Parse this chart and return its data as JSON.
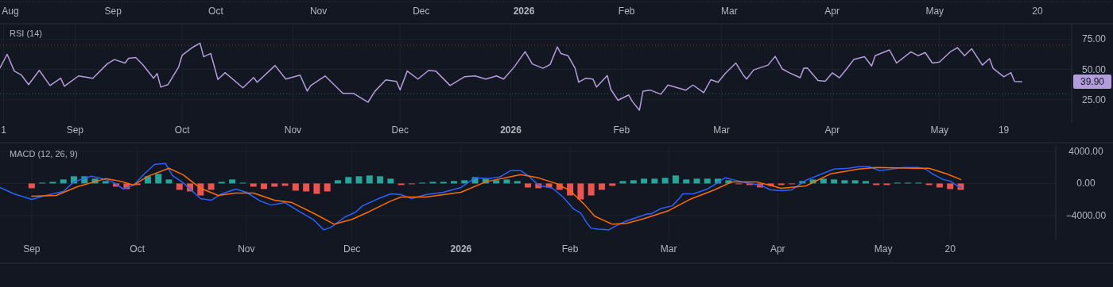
{
  "chart_data": [
    {
      "type": "other",
      "annotations": [
        "Aug",
        "Sep",
        "Oct",
        "Nov",
        "Dec",
        "2026",
        "Feb",
        "Mar",
        "Apr",
        "May",
        "20"
      ]
    },
    {
      "type": "line",
      "title": "RSI (14)",
      "xlim": [
        "2025-08-11",
        "2026-06-07"
      ],
      "ylim": [
        6,
        87
      ],
      "xticks": [
        {
          "value": "2025-08-12",
          "label": "1"
        },
        {
          "value": "2025-09-01",
          "label": "Sep"
        },
        {
          "value": "2025-10-01",
          "label": "Oct"
        },
        {
          "value": "2025-11-01",
          "label": "Nov"
        },
        {
          "value": "2025-12-01",
          "label": "Dec"
        },
        {
          "value": "2026-01-01",
          "label": "2026"
        },
        {
          "value": "2026-02-01",
          "label": "Feb"
        },
        {
          "value": "2026-03-01",
          "label": "Mar"
        },
        {
          "value": "2026-04-01",
          "label": "Apr"
        },
        {
          "value": "2026-05-01",
          "label": "May"
        },
        {
          "value": "2026-05-19",
          "label": "19"
        }
      ],
      "yticks": [
        {
          "value": 25,
          "label": "25.00"
        },
        {
          "value": 50,
          "label": "50.00"
        },
        {
          "value": 75,
          "label": "75.00"
        }
      ],
      "grid": true,
      "ref_lines": [
        {
          "axis": "y",
          "value": 70,
          "color": "#7b3b45",
          "line_style": "dotted"
        },
        {
          "axis": "y",
          "value": 30,
          "color": "#2e5e5a",
          "line_style": "dotted"
        }
      ],
      "annotations": [
        "39.90"
      ],
      "series": [
        {
          "color": "#b39ddb",
          "x": [
            "2025-08-11",
            "2025-08-13",
            "2025-08-15",
            "2025-08-17",
            "2025-08-19",
            "2025-08-22",
            "2025-08-25",
            "2025-08-28",
            "2025-08-29",
            "2025-09-02",
            "2025-09-06",
            "2025-09-10",
            "2025-09-12",
            "2025-09-15",
            "2025-09-16",
            "2025-09-18",
            "2025-09-20",
            "2025-09-23",
            "2025-09-24",
            "2025-09-25",
            "2025-09-27",
            "2025-09-30",
            "2025-10-01",
            "2025-10-04",
            "2025-10-06",
            "2025-10-07",
            "2025-10-09",
            "2025-10-11",
            "2025-10-13",
            "2025-10-18",
            "2025-10-21",
            "2025-10-22",
            "2025-10-27",
            "2025-10-30",
            "2025-11-03",
            "2025-11-05",
            "2025-11-06",
            "2025-11-10",
            "2025-11-15",
            "2025-11-18",
            "2025-11-22",
            "2025-11-24",
            "2025-11-27",
            "2025-11-30",
            "2025-12-01",
            "2025-12-03",
            "2025-12-06",
            "2025-12-09",
            "2025-12-11",
            "2025-12-15",
            "2025-12-19",
            "2025-12-22",
            "2025-12-25",
            "2025-12-28",
            "2025-12-30",
            "2026-01-02",
            "2026-01-05",
            "2026-01-07",
            "2026-01-10",
            "2026-01-12",
            "2026-01-14",
            "2026-01-15",
            "2026-01-17",
            "2026-01-19",
            "2026-01-20",
            "2026-01-22",
            "2026-01-24",
            "2026-01-25",
            "2026-01-28",
            "2026-01-29",
            "2026-01-31",
            "2026-02-03",
            "2026-02-04",
            "2026-02-06",
            "2026-02-07",
            "2026-02-09",
            "2026-02-12",
            "2026-02-14",
            "2026-02-19",
            "2026-02-21",
            "2026-02-24",
            "2026-02-26",
            "2026-02-28",
            "2026-03-02",
            "2026-03-05",
            "2026-03-07",
            "2026-03-08",
            "2026-03-10",
            "2026-03-14",
            "2026-03-16",
            "2026-03-18",
            "2026-03-20",
            "2026-03-23",
            "2026-03-24",
            "2026-03-25",
            "2026-03-28",
            "2026-03-30",
            "2026-04-01",
            "2026-04-03",
            "2026-04-05",
            "2026-04-07",
            "2026-04-10",
            "2026-04-12",
            "2026-04-13",
            "2026-04-17",
            "2026-04-19",
            "2026-04-23",
            "2026-04-25",
            "2026-04-27",
            "2026-04-29",
            "2026-05-01",
            "2026-05-04",
            "2026-05-06",
            "2026-05-08",
            "2026-05-10",
            "2026-05-13",
            "2026-05-15",
            "2026-05-16",
            "2026-05-19",
            "2026-05-21",
            "2026-05-22",
            "2026-05-24"
          ],
          "values": [
            51.3,
            62.5,
            48.7,
            45.4,
            37.5,
            49.3,
            36.8,
            42.8,
            36.2,
            44.7,
            42.8,
            54.6,
            58.2,
            55.3,
            59.2,
            59.9,
            53.9,
            42.8,
            46.7,
            35.5,
            37.5,
            52,
            61.8,
            68.4,
            71.7,
            60.5,
            63.2,
            41.8,
            47.4,
            34.9,
            43.4,
            39.5,
            53.3,
            42.1,
            45.4,
            32.2,
            36.8,
            44.7,
            30.3,
            30.3,
            23,
            32.2,
            41.4,
            40.1,
            33.2,
            48.7,
            42.1,
            49.3,
            48.7,
            36.8,
            44,
            44.7,
            42.1,
            44.7,
            42.1,
            52.3,
            64.7,
            54.6,
            51,
            54.1,
            68.6,
            63.2,
            61.4,
            51,
            39.5,
            42.8,
            42.1,
            35.5,
            45,
            33.6,
            24.6,
            29,
            23.7,
            16.4,
            32.2,
            33,
            29.6,
            37.2,
            33,
            37.2,
            30.9,
            41.6,
            39.5,
            46.7,
            55.3,
            45.7,
            42.1,
            49.7,
            53.6,
            60.8,
            50.4,
            47.2,
            43.2,
            51,
            51.3,
            40.9,
            40.3,
            47.2,
            43.2,
            50.4,
            58.2,
            60.5,
            52.9,
            61.4,
            66.1,
            55.3,
            64.5,
            61.4,
            64,
            55.3,
            56.1,
            64.5,
            68,
            61.4,
            67.1,
            53.6,
            58.9,
            51,
            44,
            47.4,
            40.1,
            39.9
          ]
        }
      ]
    },
    {
      "type": "line",
      "title": "MACD (12, 26, 9)",
      "xlim": [
        "2025-08-23",
        "2026-06-19"
      ],
      "ylim": [
        -7100,
        4800
      ],
      "xticks": [
        {
          "value": "2025-09-01",
          "label": "Sep"
        },
        {
          "value": "2025-10-01",
          "label": "Oct"
        },
        {
          "value": "2025-11-01",
          "label": "Nov"
        },
        {
          "value": "2025-12-01",
          "label": "Dec"
        },
        {
          "value": "2026-01-01",
          "label": "2026"
        },
        {
          "value": "2026-02-01",
          "label": "Feb"
        },
        {
          "value": "2026-03-01",
          "label": "Mar"
        },
        {
          "value": "2026-04-01",
          "label": "Apr"
        },
        {
          "value": "2026-05-01",
          "label": "May"
        },
        {
          "value": "2026-05-20",
          "label": "20"
        }
      ],
      "yticks": [
        {
          "value": -4000,
          "label": "−4000.00"
        },
        {
          "value": 0,
          "label": "0.00"
        },
        {
          "value": 4000,
          "label": "4000.00"
        }
      ],
      "grid": true,
      "series": [
        {
          "type": "bar",
          "x": [
            "2025-09-01",
            "2025-09-04",
            "2025-09-07",
            "2025-09-10",
            "2025-09-13",
            "2025-09-16",
            "2025-09-19",
            "2025-09-22",
            "2025-09-25",
            "2025-09-28",
            "2025-10-01",
            "2025-10-04",
            "2025-10-07",
            "2025-10-10",
            "2025-10-13",
            "2025-10-16",
            "2025-10-19",
            "2025-10-22",
            "2025-10-25",
            "2025-10-28",
            "2025-10-31",
            "2025-11-03",
            "2025-11-06",
            "2025-11-09",
            "2025-11-12",
            "2025-11-15",
            "2025-11-18",
            "2025-11-21",
            "2025-11-24",
            "2025-11-27",
            "2025-11-30",
            "2025-12-03",
            "2025-12-06",
            "2025-12-09",
            "2025-12-12",
            "2025-12-15",
            "2025-12-18",
            "2025-12-21",
            "2025-12-24",
            "2025-12-27",
            "2025-12-30",
            "2026-01-02",
            "2026-01-05",
            "2026-01-08",
            "2026-01-11",
            "2026-01-14",
            "2026-01-17",
            "2026-01-20",
            "2026-01-23",
            "2026-01-26",
            "2026-01-29",
            "2026-02-01",
            "2026-02-04",
            "2026-02-07",
            "2026-02-10",
            "2026-02-13",
            "2026-02-16",
            "2026-02-19",
            "2026-02-22",
            "2026-02-25",
            "2026-02-28",
            "2026-03-03",
            "2026-03-06",
            "2026-03-09",
            "2026-03-12",
            "2026-03-15",
            "2026-03-18",
            "2026-03-21",
            "2026-03-24",
            "2026-03-27",
            "2026-03-30",
            "2026-04-02",
            "2026-04-05",
            "2026-04-08",
            "2026-04-11",
            "2026-04-14",
            "2026-04-17",
            "2026-04-20",
            "2026-04-23",
            "2026-04-26",
            "2026-04-29",
            "2026-05-02",
            "2026-05-05",
            "2026-05-08",
            "2026-05-11",
            "2026-05-14",
            "2026-05-17",
            "2026-05-20",
            "2026-05-23"
          ],
          "values": [
            -600,
            100,
            200,
            500,
            900,
            900,
            600,
            300,
            -400,
            -700,
            -200,
            900,
            1200,
            500,
            -800,
            -1000,
            -1500,
            -800,
            200,
            500,
            100,
            -400,
            -700,
            -400,
            -300,
            -900,
            -1000,
            -1300,
            -1000,
            400,
            800,
            900,
            1000,
            900,
            600,
            -200,
            -100,
            100,
            200,
            200,
            300,
            400,
            800,
            600,
            400,
            500,
            300,
            -500,
            -600,
            -500,
            -800,
            -1500,
            -2000,
            -1500,
            -800,
            -300,
            300,
            400,
            600,
            600,
            700,
            1000,
            500,
            600,
            600,
            600,
            400,
            -100,
            -200,
            -500,
            -300,
            -200,
            -100,
            300,
            500,
            600,
            500,
            400,
            400,
            300,
            -200,
            -200,
            100,
            100,
            100,
            -200,
            -500,
            -700,
            -800
          ],
          "colors": [
            "#ef5350",
            "#26a69a",
            "#26a69a",
            "#26a69a",
            "#26a69a",
            "#26a69a",
            "#26a69a",
            "#26a69a",
            "#ef5350",
            "#ef5350",
            "#ef5350",
            "#26a69a",
            "#26a69a",
            "#26a69a",
            "#ef5350",
            "#ef5350",
            "#ef5350",
            "#ef5350",
            "#26a69a",
            "#26a69a",
            "#26a69a",
            "#ef5350",
            "#ef5350",
            "#ef5350",
            "#ef5350",
            "#ef5350",
            "#ef5350",
            "#ef5350",
            "#ef5350",
            "#26a69a",
            "#26a69a",
            "#26a69a",
            "#26a69a",
            "#26a69a",
            "#26a69a",
            "#ef5350",
            "#ef5350",
            "#26a69a",
            "#26a69a",
            "#26a69a",
            "#26a69a",
            "#26a69a",
            "#26a69a",
            "#26a69a",
            "#26a69a",
            "#26a69a",
            "#26a69a",
            "#ef5350",
            "#ef5350",
            "#ef5350",
            "#ef5350",
            "#ef5350",
            "#ef5350",
            "#ef5350",
            "#ef5350",
            "#ef5350",
            "#26a69a",
            "#26a69a",
            "#26a69a",
            "#26a69a",
            "#26a69a",
            "#26a69a",
            "#26a69a",
            "#26a69a",
            "#26a69a",
            "#26a69a",
            "#26a69a",
            "#ef5350",
            "#ef5350",
            "#ef5350",
            "#ef5350",
            "#ef5350",
            "#ef5350",
            "#26a69a",
            "#26a69a",
            "#26a69a",
            "#26a69a",
            "#26a69a",
            "#26a69a",
            "#26a69a",
            "#ef5350",
            "#ef5350",
            "#26a69a",
            "#26a69a",
            "#26a69a",
            "#ef5350",
            "#ef5350",
            "#ef5350",
            "#ef5350"
          ]
        },
        {
          "color": "#2962ff",
          "x": [
            "2025-08-23",
            "2025-08-27",
            "2025-09-01",
            "2025-09-05",
            "2025-09-10",
            "2025-09-13",
            "2025-09-18",
            "2025-09-21",
            "2025-09-24",
            "2025-09-27",
            "2025-09-30",
            "2025-10-03",
            "2025-10-06",
            "2025-10-09",
            "2025-10-11",
            "2025-10-14",
            "2025-10-19",
            "2025-10-22",
            "2025-10-25",
            "2025-10-29",
            "2025-11-01",
            "2025-11-05",
            "2025-11-08",
            "2025-11-12",
            "2025-11-16",
            "2025-11-20",
            "2025-11-23",
            "2025-11-25",
            "2025-11-29",
            "2025-12-02",
            "2025-12-04",
            "2025-12-08",
            "2025-12-12",
            "2025-12-15",
            "2025-12-18",
            "2025-12-22",
            "2025-12-27",
            "2026-01-01",
            "2026-01-05",
            "2026-01-09",
            "2026-01-12",
            "2026-01-15",
            "2026-01-18",
            "2026-01-20",
            "2026-01-23",
            "2026-01-27",
            "2026-01-30",
            "2026-02-02",
            "2026-02-04",
            "2026-02-06",
            "2026-02-07",
            "2026-02-09",
            "2026-02-12",
            "2026-02-14",
            "2026-02-17",
            "2026-02-19",
            "2026-02-23",
            "2026-02-24",
            "2026-02-27",
            "2026-03-02",
            "2026-03-04",
            "2026-03-05",
            "2026-03-08",
            "2026-03-12",
            "2026-03-15",
            "2026-03-17",
            "2026-03-20",
            "2026-03-23",
            "2026-03-27",
            "2026-03-30",
            "2026-04-02",
            "2026-04-05",
            "2026-04-09",
            "2026-04-13",
            "2026-04-17",
            "2026-04-21",
            "2026-04-24",
            "2026-04-27",
            "2026-04-30",
            "2026-05-05",
            "2026-05-07",
            "2026-05-11",
            "2026-05-13",
            "2026-05-15",
            "2026-05-18",
            "2026-05-20",
            "2026-05-22",
            "2026-05-23"
          ],
          "values": [
            -500,
            -1300,
            -2000,
            -1500,
            -1000,
            200,
            900,
            600,
            200,
            -700,
            -200,
            1200,
            2400,
            2500,
            1000,
            100,
            -1900,
            -2100,
            -1300,
            -700,
            -1100,
            -2200,
            -2700,
            -2400,
            -3500,
            -4500,
            -5800,
            -5500,
            -4200,
            -3600,
            -2800,
            -2000,
            -1300,
            -1400,
            -1900,
            -1400,
            -1100,
            -500,
            700,
            600,
            800,
            1600,
            1600,
            1000,
            -200,
            -600,
            -1700,
            -3200,
            -3700,
            -5100,
            -5600,
            -5700,
            -5800,
            -5300,
            -4700,
            -4400,
            -3800,
            -3800,
            -3100,
            -2800,
            -1900,
            -1300,
            -1300,
            -700,
            100,
            700,
            400,
            100,
            -200,
            -800,
            -900,
            -800,
            400,
            1100,
            1800,
            1900,
            2100,
            2100,
            1600,
            1900,
            2000,
            2000,
            1800,
            1200,
            500,
            300,
            -300,
            -500
          ]
        },
        {
          "color": "#ff6d00",
          "x": [
            "2025-09-01",
            "2025-09-08",
            "2025-09-14",
            "2025-09-22",
            "2025-09-26",
            "2025-09-30",
            "2025-10-04",
            "2025-10-10",
            "2025-10-14",
            "2025-10-19",
            "2025-10-24",
            "2025-10-29",
            "2025-11-03",
            "2025-11-09",
            "2025-11-14",
            "2025-11-20",
            "2025-11-26",
            "2025-12-01",
            "2025-12-06",
            "2025-12-12",
            "2025-12-15",
            "2025-12-22",
            "2026-01-01",
            "2026-01-08",
            "2026-01-18",
            "2026-01-23",
            "2026-01-28",
            "2026-02-01",
            "2026-02-05",
            "2026-02-08",
            "2026-02-13",
            "2026-02-17",
            "2026-02-22",
            "2026-03-01",
            "2026-03-07",
            "2026-03-14",
            "2026-03-19",
            "2026-03-26",
            "2026-04-02",
            "2026-04-09",
            "2026-04-16",
            "2026-04-24",
            "2026-04-29",
            "2026-05-10",
            "2026-05-14",
            "2026-05-19",
            "2026-05-23"
          ],
          "values": [
            -1600,
            -1500,
            -400,
            600,
            300,
            -200,
            900,
            1900,
            1100,
            -600,
            -1500,
            -1200,
            -1200,
            -2100,
            -2400,
            -3700,
            -5100,
            -4500,
            -3500,
            -2200,
            -1700,
            -1700,
            -1100,
            200,
            1100,
            700,
            0,
            -900,
            -2600,
            -4100,
            -5100,
            -5000,
            -4400,
            -3400,
            -2000,
            -800,
            200,
            200,
            -600,
            -300,
            1200,
            1800,
            2000,
            1900,
            1900,
            1200,
            500
          ]
        }
      ]
    }
  ]
}
